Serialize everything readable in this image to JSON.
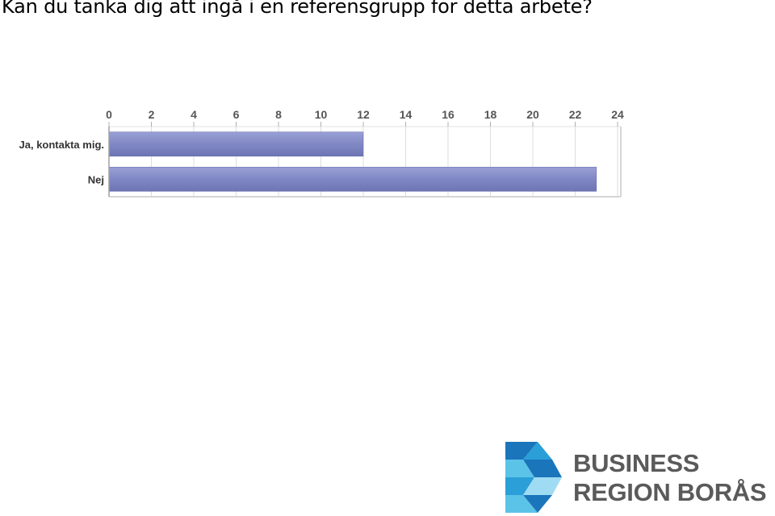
{
  "slide": {
    "title": "Kan du tänka dig att ingå i en referensgrupp för detta arbete?"
  },
  "chart_data": {
    "type": "bar",
    "orientation": "horizontal",
    "categories": [
      "Ja, kontakta mig.",
      "Nej"
    ],
    "values": [
      12,
      23
    ],
    "title": "",
    "xlabel": "",
    "ylabel": "",
    "xlim": [
      0,
      24
    ],
    "xticks": [
      0,
      2,
      4,
      6,
      8,
      10,
      12,
      14,
      16,
      18,
      20,
      22,
      24
    ],
    "axis_position": "top",
    "grid": true,
    "bar_color": "#8088c4",
    "grid_color": "#dddddd"
  },
  "logo": {
    "line1": "BUSINESS",
    "line2": "REGION BORÅS",
    "colors": [
      "#1b75bb",
      "#2a9fd8",
      "#5cc3e8",
      "#9fdbf3"
    ]
  }
}
